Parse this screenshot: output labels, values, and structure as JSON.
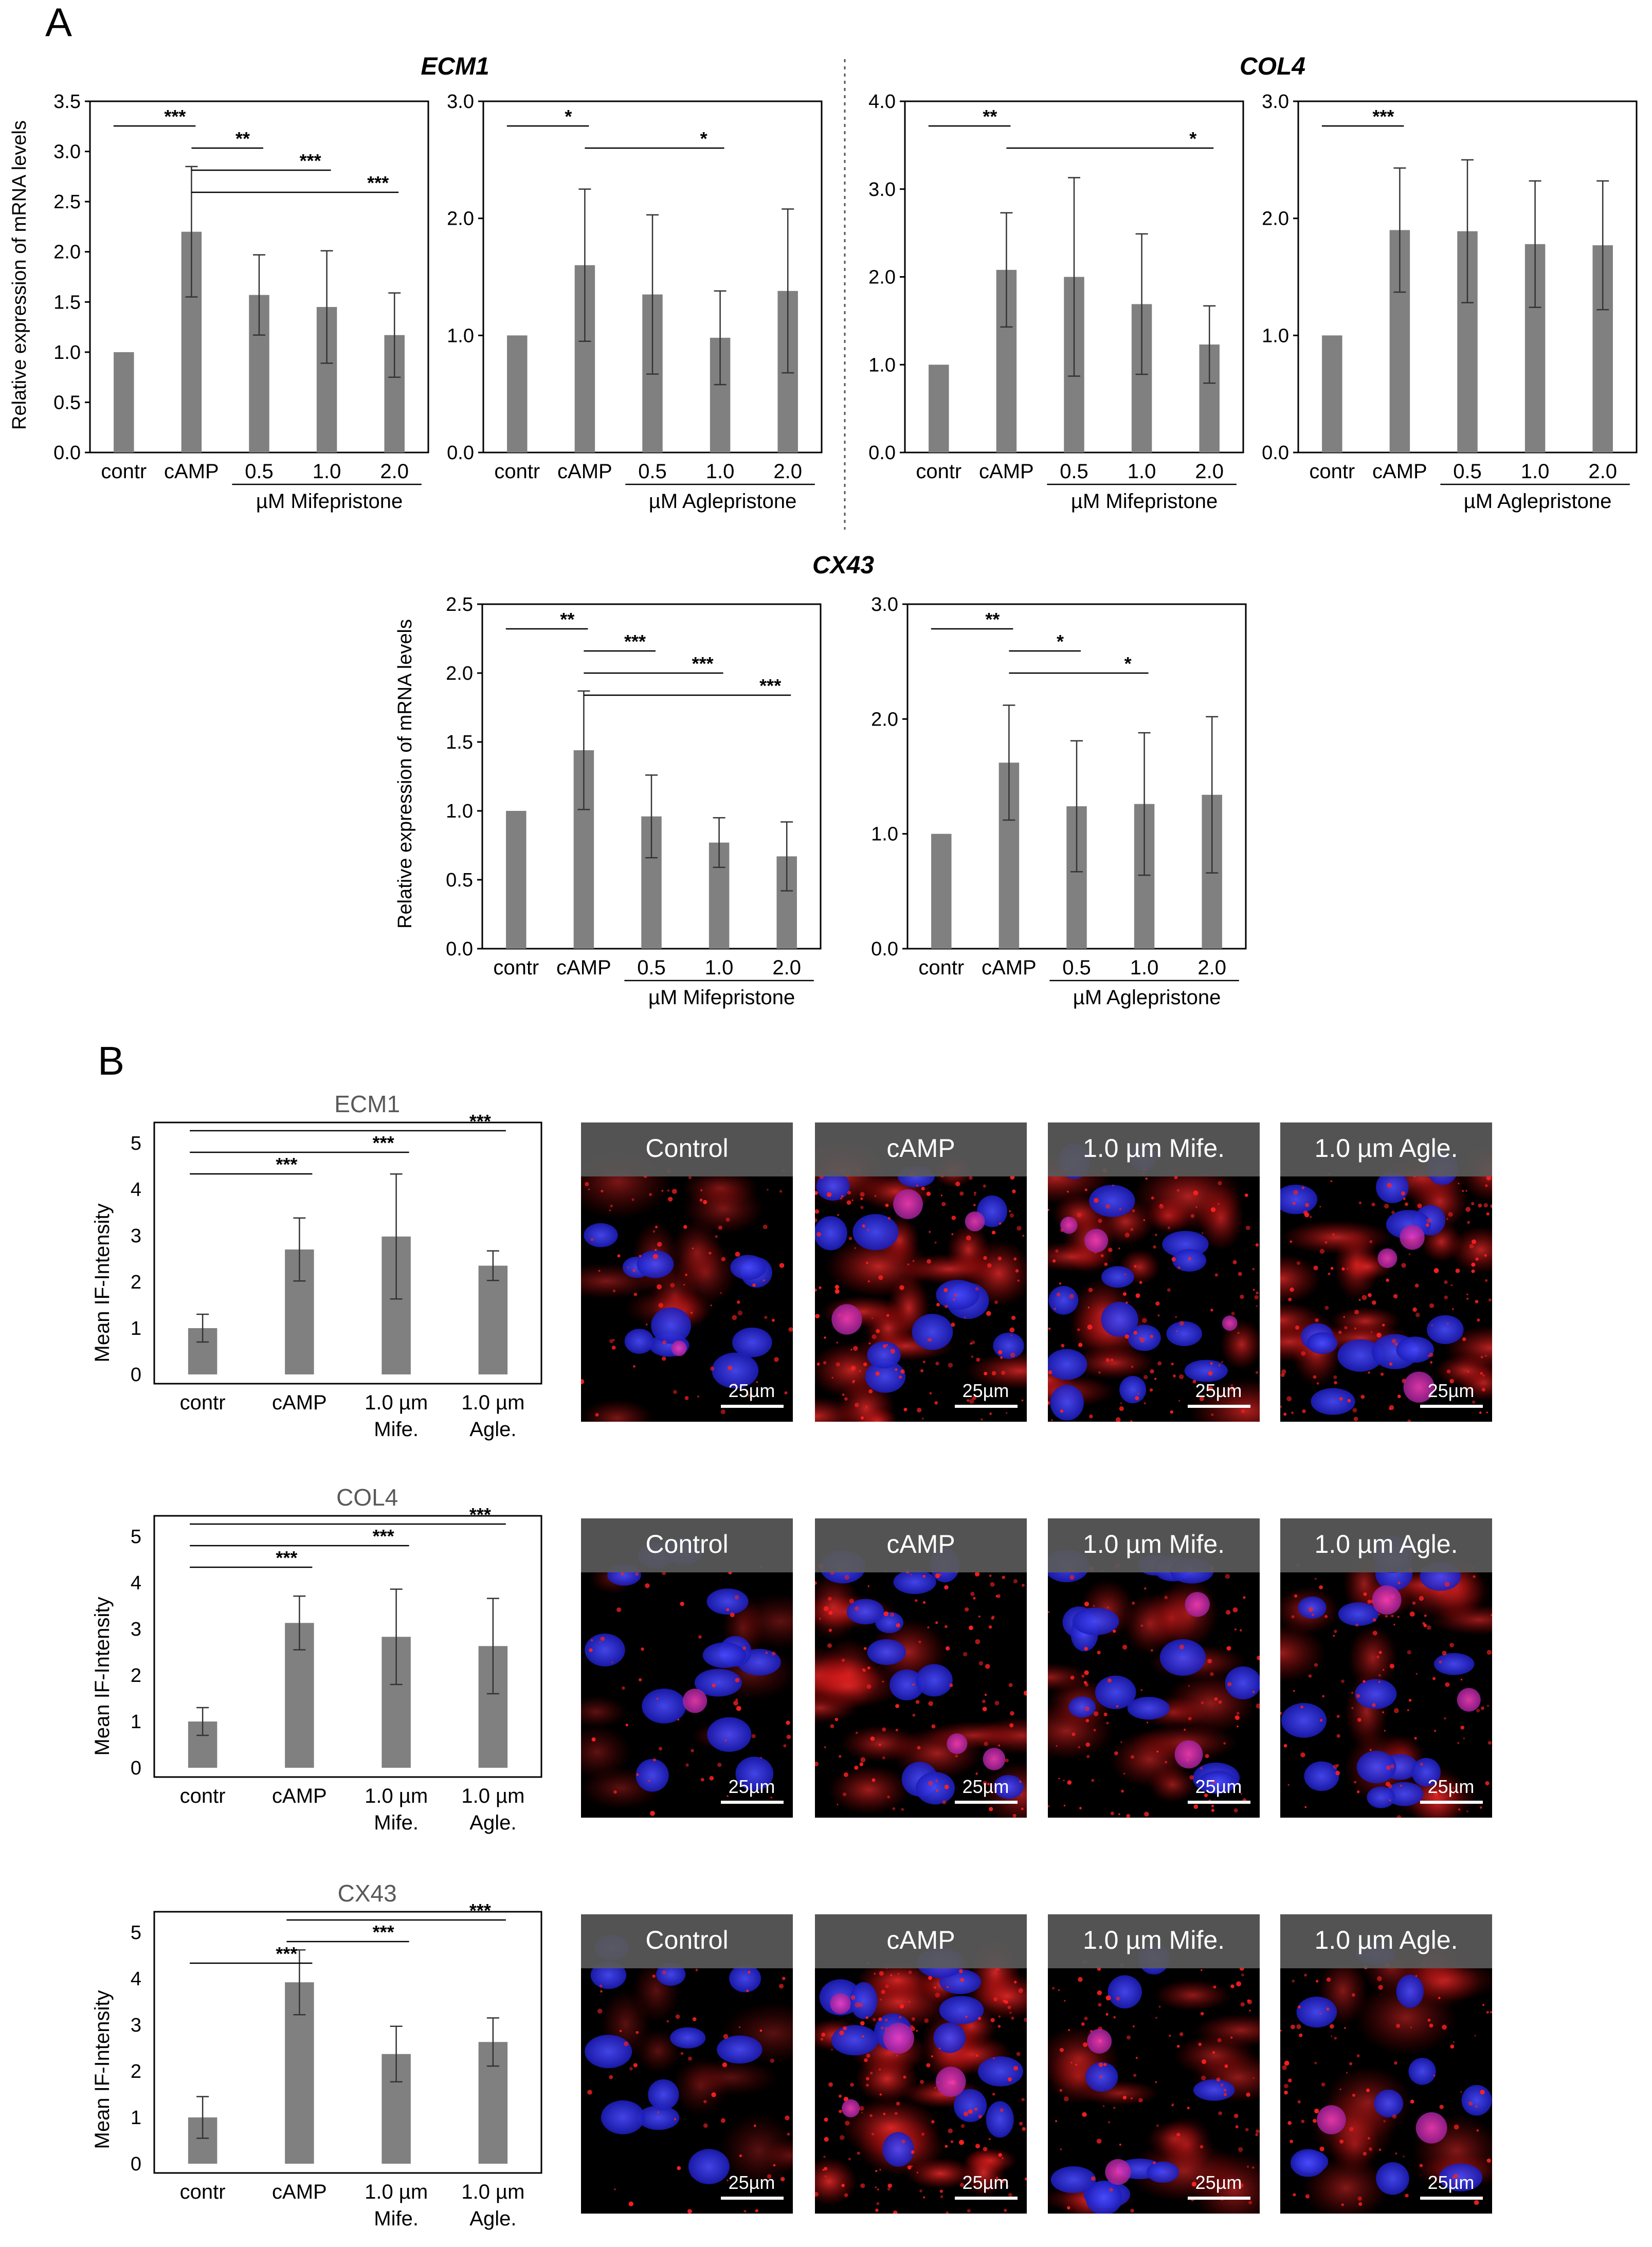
{
  "panels": {
    "a": "A",
    "b": "B"
  },
  "colors": {
    "bar": "#808080",
    "axis": "#000000",
    "gray_text": "#595959",
    "banner": "#5a5a5a"
  },
  "partA": {
    "ylabel": "Relative expression of mRNA levels",
    "gene_titles": {
      "ecm1": "ECM1",
      "col4": "COL4",
      "cx43": "CX43"
    }
  },
  "partB": {
    "ylabel": "Mean IF-Intensity",
    "categories": [
      "contr",
      "cAMP",
      "1.0 µm Mife.",
      "1.0 µm Agle."
    ],
    "image_labels": [
      "Control",
      "cAMP",
      "1.0 µm Mife.",
      "1.0 µm Agle."
    ],
    "scalebar": "25µm",
    "staining_colors": {
      "nucleus": "#2a2ae0",
      "target": "#e01818"
    }
  },
  "chart_data": [
    {
      "id": "a-ecm1-mife",
      "type": "bar",
      "gene": "ECM1",
      "categories": [
        "contr",
        "cAMP",
        "0.5",
        "1.0",
        "2.0"
      ],
      "group_label": "µM Mifepristone",
      "values": [
        1.0,
        2.2,
        1.57,
        1.45,
        1.17
      ],
      "errors": [
        0.0,
        0.65,
        0.4,
        0.56,
        0.42
      ],
      "ylim": [
        0,
        3.5
      ],
      "yticks": [
        "0.0",
        "0.5",
        "1.0",
        "1.5",
        "2.0",
        "2.5",
        "3.0",
        "3.5"
      ],
      "significance": [
        [
          "contr",
          "cAMP",
          "***"
        ],
        [
          "cAMP",
          "0.5",
          "**"
        ],
        [
          "cAMP",
          "1.0",
          "***"
        ],
        [
          "cAMP",
          "2.0",
          "***"
        ]
      ]
    },
    {
      "id": "a-ecm1-agle",
      "type": "bar",
      "gene": "ECM1",
      "categories": [
        "contr",
        "cAMP",
        "0.5",
        "1.0",
        "2.0"
      ],
      "group_label": "µM Aglepristone",
      "values": [
        1.0,
        1.6,
        1.35,
        0.98,
        1.38
      ],
      "errors": [
        0.0,
        0.65,
        0.68,
        0.4,
        0.7
      ],
      "ylim": [
        0,
        3
      ],
      "yticks": [
        "0.0",
        "1.0",
        "2.0",
        "3.0"
      ],
      "significance": [
        [
          "contr",
          "cAMP",
          "*"
        ],
        [
          "cAMP",
          "1.0",
          "*"
        ]
      ]
    },
    {
      "id": "a-col4-mife",
      "type": "bar",
      "gene": "COL4",
      "categories": [
        "contr",
        "cAMP",
        "0.5",
        "1.0",
        "2.0"
      ],
      "group_label": "µM Mifepristone",
      "values": [
        1.0,
        2.08,
        2.0,
        1.69,
        1.23
      ],
      "errors": [
        0.0,
        0.65,
        1.13,
        0.8,
        0.44
      ],
      "ylim": [
        0,
        4
      ],
      "yticks": [
        "0.0",
        "1.0",
        "2.0",
        "3.0",
        "4.0"
      ],
      "significance": [
        [
          "contr",
          "cAMP",
          "**"
        ],
        [
          "cAMP",
          "2.0",
          "*"
        ]
      ]
    },
    {
      "id": "a-col4-agle",
      "type": "bar",
      "gene": "COL4",
      "categories": [
        "contr",
        "cAMP",
        "0.5",
        "1.0",
        "2.0"
      ],
      "group_label": "µM Aglepristone",
      "values": [
        1.0,
        1.9,
        1.89,
        1.78,
        1.77
      ],
      "errors": [
        0.0,
        0.53,
        0.61,
        0.54,
        0.55
      ],
      "ylim": [
        0,
        3
      ],
      "yticks": [
        "0.0",
        "1.0",
        "2.0",
        "3.0"
      ],
      "significance": [
        [
          "contr",
          "cAMP",
          "***"
        ]
      ]
    },
    {
      "id": "a-cx43-mife",
      "type": "bar",
      "gene": "CX43",
      "categories": [
        "contr",
        "cAMP",
        "0.5",
        "1.0",
        "2.0"
      ],
      "group_label": "µM Mifepristone",
      "values": [
        1.0,
        1.44,
        0.96,
        0.77,
        0.67
      ],
      "errors": [
        0.0,
        0.43,
        0.3,
        0.18,
        0.25
      ],
      "ylim": [
        0,
        2.5
      ],
      "yticks": [
        "0.0",
        "0.5",
        "1.0",
        "1.5",
        "2.0",
        "2.5"
      ],
      "significance": [
        [
          "contr",
          "cAMP",
          "**"
        ],
        [
          "cAMP",
          "0.5",
          "***"
        ],
        [
          "cAMP",
          "1.0",
          "***"
        ],
        [
          "cAMP",
          "2.0",
          "***"
        ]
      ]
    },
    {
      "id": "a-cx43-agle",
      "type": "bar",
      "gene": "CX43",
      "categories": [
        "contr",
        "cAMP",
        "0.5",
        "1.0",
        "2.0"
      ],
      "group_label": "µM Aglepristone",
      "values": [
        1.0,
        1.62,
        1.24,
        1.26,
        1.34
      ],
      "errors": [
        0.0,
        0.5,
        0.57,
        0.62,
        0.68
      ],
      "ylim": [
        0,
        3
      ],
      "yticks": [
        "0.0",
        "1.0",
        "2.0",
        "3.0"
      ],
      "significance": [
        [
          "contr",
          "cAMP",
          "**"
        ],
        [
          "cAMP",
          "0.5",
          "*"
        ],
        [
          "cAMP",
          "1.0",
          "*"
        ]
      ]
    },
    {
      "id": "b-ecm1",
      "type": "bar",
      "title": "ECM1",
      "categories": [
        "contr",
        "cAMP",
        "1.0 µm Mife.",
        "1.0 µm Agle."
      ],
      "values": [
        1.0,
        2.7,
        2.98,
        2.35
      ],
      "errors": [
        0.3,
        0.68,
        1.35,
        0.32
      ],
      "ylim": [
        0,
        5
      ],
      "yticks": [
        "0",
        "1",
        "2",
        "3",
        "4",
        "5"
      ],
      "significance": [
        [
          "contr",
          "cAMP",
          "***"
        ],
        [
          "contr",
          "1.0 µm Mife.",
          "***"
        ],
        [
          "contr",
          "1.0 µm Agle.",
          "***"
        ]
      ]
    },
    {
      "id": "b-col4",
      "type": "bar",
      "title": "COL4",
      "categories": [
        "contr",
        "cAMP",
        "1.0 µm Mife.",
        "1.0 µm Agle."
      ],
      "values": [
        1.0,
        3.13,
        2.83,
        2.63
      ],
      "errors": [
        0.3,
        0.58,
        1.03,
        1.03
      ],
      "ylim": [
        0,
        5
      ],
      "yticks": [
        "0",
        "1",
        "2",
        "3",
        "4",
        "5"
      ],
      "significance": [
        [
          "contr",
          "cAMP",
          "***"
        ],
        [
          "contr",
          "1.0 µm Mife.",
          "***"
        ],
        [
          "contr",
          "1.0 µm Agle.",
          "***"
        ]
      ]
    },
    {
      "id": "b-cx43",
      "type": "bar",
      "title": "CX43",
      "categories": [
        "contr",
        "cAMP",
        "1.0 µm Mife.",
        "1.0 µm Agle."
      ],
      "values": [
        1.0,
        3.92,
        2.37,
        2.63
      ],
      "errors": [
        0.45,
        0.7,
        0.6,
        0.52
      ],
      "ylim": [
        0,
        5
      ],
      "yticks": [
        "0",
        "1",
        "2",
        "3",
        "4",
        "5"
      ],
      "significance": [
        [
          "contr",
          "cAMP",
          "***"
        ],
        [
          "cAMP",
          "1.0 µm Mife.",
          "***"
        ],
        [
          "cAMP",
          "1.0 µm Agle.",
          "***"
        ]
      ]
    }
  ]
}
